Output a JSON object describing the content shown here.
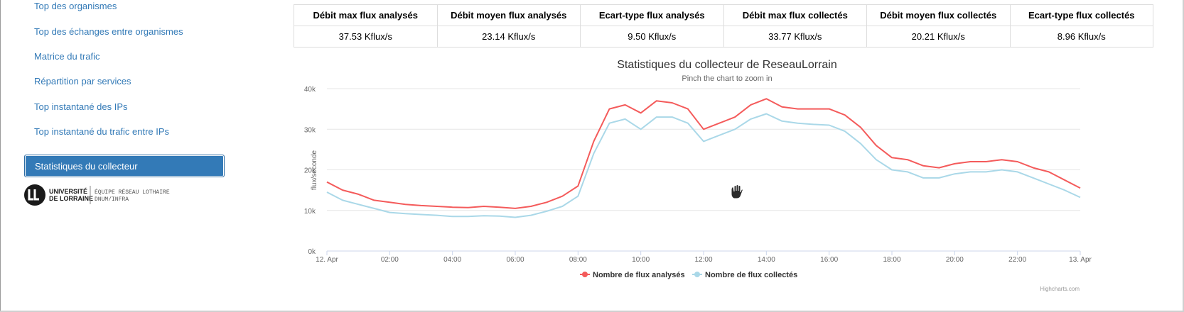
{
  "sidebar": {
    "items": [
      {
        "label": "Top des organismes",
        "active": false
      },
      {
        "label": "Top des échanges entre organismes",
        "active": false
      },
      {
        "label": "Matrice du trafic",
        "active": false
      },
      {
        "label": "Répartition par services",
        "active": false
      },
      {
        "label": "Top instantané des IPs",
        "active": false
      },
      {
        "label": "Top instantané du trafic entre IPs",
        "active": false
      },
      {
        "label": "Statistiques du collecteur",
        "active": true
      }
    ]
  },
  "logo": {
    "line1": "UNIVERSITÉ",
    "line2": "DE LORRAINE",
    "line3": "ÉQUIPE RÉSEAU LOTHAIRE",
    "line4": "DNUM/INFRA"
  },
  "stats": {
    "headers": [
      "Débit max flux analysés",
      "Débit moyen flux analysés",
      "Ecart-type flux analysés",
      "Débit max flux collectés",
      "Débit moyen flux collectés",
      "Ecart-type flux collectés"
    ],
    "values": [
      "37.53 Kflux/s",
      "23.14 Kflux/s",
      "9.50 Kflux/s",
      "33.77 Kflux/s",
      "20.21 Kflux/s",
      "8.96 Kflux/s"
    ]
  },
  "credits": "Highcharts.com",
  "chart_data": {
    "type": "line",
    "title": "Statistiques du collecteur de ReseauLorrain",
    "subtitle": "Pinch the chart to zoom in",
    "ylabel": "flux/seconde",
    "xlabel": "",
    "ylim": [
      0,
      40000
    ],
    "yticks": [
      0,
      10000,
      20000,
      30000,
      40000
    ],
    "ytick_labels": [
      "0k",
      "10k",
      "20k",
      "30k",
      "40k"
    ],
    "xlim": [
      0,
      24
    ],
    "xticks": [
      0,
      2,
      4,
      6,
      8,
      10,
      12,
      14,
      16,
      18,
      20,
      22,
      24
    ],
    "xtick_labels": [
      "12. Apr",
      "02:00",
      "04:00",
      "06:00",
      "08:00",
      "10:00",
      "12:00",
      "14:00",
      "16:00",
      "18:00",
      "20:00",
      "22:00",
      "13. Apr"
    ],
    "grid": true,
    "legend_position": "bottom",
    "x": [
      0,
      0.5,
      1,
      1.5,
      2,
      2.5,
      3,
      3.5,
      4,
      4.5,
      5,
      5.5,
      6,
      6.5,
      7,
      7.5,
      8,
      8.5,
      9,
      9.5,
      10,
      10.5,
      11,
      11.5,
      12,
      12.5,
      13,
      13.5,
      14,
      14.5,
      15,
      15.5,
      16,
      16.5,
      17,
      17.5,
      18,
      18.5,
      19,
      19.5,
      20,
      20.5,
      21,
      21.5,
      22,
      22.5,
      23,
      23.5,
      24
    ],
    "series": [
      {
        "name": "Nombre de flux analysés",
        "color": "#f45b5b",
        "values": [
          17000,
          15000,
          14000,
          12500,
          12000,
          11500,
          11200,
          11000,
          10800,
          10700,
          11000,
          10800,
          10500,
          11000,
          12000,
          13500,
          16000,
          27000,
          35000,
          36000,
          34000,
          37000,
          36500,
          35000,
          30000,
          31500,
          33000,
          36000,
          37500,
          35500,
          35000,
          35000,
          35000,
          33500,
          30500,
          26000,
          23000,
          22500,
          21000,
          20500,
          21500,
          22000,
          22000,
          22500,
          22000,
          20500,
          19500,
          17500,
          15500
        ]
      },
      {
        "name": "Nombre de flux collectés",
        "color": "#aad8e8",
        "values": [
          14500,
          12500,
          11500,
          10500,
          9500,
          9200,
          9000,
          8800,
          8500,
          8500,
          8700,
          8600,
          8300,
          8800,
          9800,
          11000,
          13500,
          24000,
          31500,
          32500,
          30000,
          33000,
          33000,
          31500,
          27000,
          28500,
          30000,
          32500,
          33800,
          32000,
          31500,
          31200,
          31000,
          29500,
          26500,
          22500,
          20000,
          19500,
          18000,
          18000,
          19000,
          19500,
          19500,
          20000,
          19500,
          18000,
          16500,
          15000,
          13200
        ]
      }
    ]
  }
}
